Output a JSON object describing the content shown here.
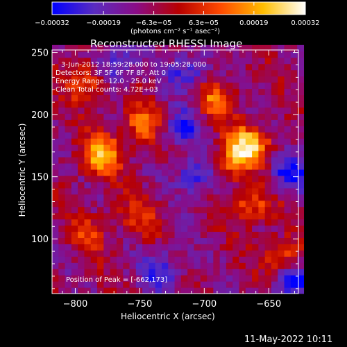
{
  "chart_data": {
    "type": "heatmap",
    "title": "Reconstructed RHESSI Image",
    "xlabel": "Heliocentric X (arcsec)",
    "ylabel": "Heliocentric Y (arcsec)",
    "xlim": [
      -818,
      -627
    ],
    "ylim": [
      56,
      252
    ],
    "x_ticks": [
      -800,
      -750,
      -700,
      -650
    ],
    "x_tick_labels": [
      "−800",
      "−750",
      "−700",
      "−650"
    ],
    "y_ticks": [
      100,
      150,
      200,
      250
    ],
    "y_tick_labels": [
      "100",
      "150",
      "200",
      "250"
    ],
    "colorbar": {
      "range": [
        -0.00032,
        0.00032
      ],
      "ticks": [
        -0.00032,
        -0.00019,
        -6.3e-05,
        6.3e-05,
        0.00019,
        0.00032
      ],
      "tick_labels": [
        "−0.00032",
        "−0.00019",
        "−6.3e−05",
        "6.3e−05",
        "0.00019",
        "0.00032"
      ],
      "label": "(photons cm⁻² s⁻¹ asec⁻²)",
      "colors": [
        "#0000ff",
        "#5a2cc0",
        "#8a0c86",
        "#b80000",
        "#ff4b00",
        "#ffbe00",
        "#ffffff"
      ]
    },
    "annotations": [
      "3-Jun-2012 18:59:28.000 to 19:05:28.000",
      "Detectors: 3F 5F 6F 7F 8F, Att 0",
      "Energy Range: 12.0 - 25.0 keV",
      "Clean     Total counts: 4.72E+03"
    ],
    "peak_label": "Position of Peak = [-662,173]",
    "peak": [
      -662,
      173
    ],
    "bright_features": [
      {
        "x": -665,
        "y": 175,
        "peak": 0.00032
      },
      {
        "x": -780,
        "y": 168,
        "peak": 0.00029
      },
      {
        "x": -748,
        "y": 192,
        "peak": 0.00021
      },
      {
        "x": -692,
        "y": 212,
        "peak": 0.00019
      },
      {
        "x": -792,
        "y": 228,
        "peak": 0.00022
      },
      {
        "x": -663,
        "y": 128,
        "peak": 0.0002
      },
      {
        "x": -640,
        "y": 84,
        "peak": 0.00022
      },
      {
        "x": -681,
        "y": 162,
        "peak": 0.00019
      },
      {
        "x": -752,
        "y": 118,
        "peak": 0.00013
      },
      {
        "x": -790,
        "y": 105,
        "peak": 0.00012
      }
    ],
    "dark_features": [
      {
        "x": -705,
        "y": 152,
        "peak": -0.00022
      },
      {
        "x": -718,
        "y": 190,
        "peak": -0.00019
      },
      {
        "x": -634,
        "y": 153,
        "peak": -0.00022
      },
      {
        "x": -712,
        "y": 235,
        "peak": -0.00019
      },
      {
        "x": -633,
        "y": 68,
        "peak": -0.00024
      },
      {
        "x": -770,
        "y": 240,
        "peak": -0.00019
      },
      {
        "x": -733,
        "y": 75,
        "peak": -0.00019
      }
    ]
  },
  "timestamp": "11-May-2022 10:11"
}
